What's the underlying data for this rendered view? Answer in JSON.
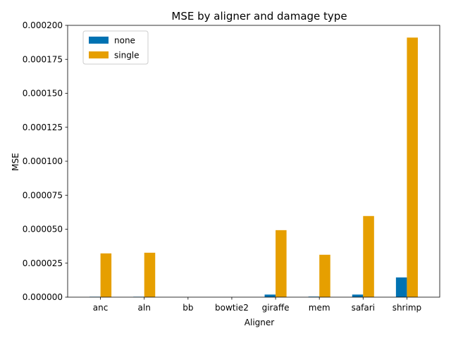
{
  "chart_data": {
    "type": "bar",
    "title": "MSE by aligner and damage type",
    "xlabel": "Aligner",
    "ylabel": "MSE",
    "categories": [
      "anc",
      "aln",
      "bb",
      "bowtie2",
      "giraffe",
      "mem",
      "safari",
      "shrimp"
    ],
    "series": [
      {
        "name": "none",
        "color": "#0072b2",
        "values": [
          3e-07,
          3e-07,
          0.0,
          0.0,
          1.9e-06,
          4e-07,
          1.9e-06,
          1.45e-05
        ]
      },
      {
        "name": "single",
        "color": "#e69f00",
        "values": [
          3.22e-05,
          3.27e-05,
          0.0,
          0.0,
          4.93e-05,
          3.12e-05,
          5.97e-05,
          0.000191
        ]
      }
    ],
    "ylim": [
      0,
      0.0002
    ],
    "yticks": [
      "0.000000",
      "0.000025",
      "0.000050",
      "0.000075",
      "0.000100",
      "0.000125",
      "0.000150",
      "0.000175",
      "0.000200"
    ],
    "legend_position": "top-left",
    "grid": false
  }
}
